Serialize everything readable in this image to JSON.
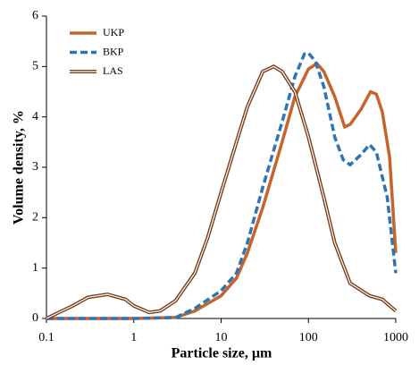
{
  "chart_data": {
    "type": "line",
    "x_label": "Particle size, µm",
    "y_label": "Volume density, %",
    "xscale": "log",
    "xlim": [
      0.1,
      1000
    ],
    "xticks": [
      0.1,
      1,
      10,
      100,
      1000
    ],
    "ylim": [
      0,
      6
    ],
    "yticks": [
      0,
      1,
      2,
      3,
      4,
      5,
      6
    ],
    "legend": "top-left",
    "series": [
      {
        "name": "UKP",
        "color": "#c5642b",
        "style": "solid",
        "x": [
          0.1,
          1,
          3,
          5,
          10,
          15,
          20,
          30,
          50,
          70,
          100,
          125,
          150,
          200,
          260,
          300,
          400,
          515,
          600,
          700,
          850,
          1000
        ],
        "values": [
          0,
          0,
          0.02,
          0.15,
          0.45,
          0.8,
          1.3,
          2.2,
          3.5,
          4.4,
          4.95,
          5.06,
          4.9,
          4.4,
          3.8,
          3.85,
          4.15,
          4.5,
          4.45,
          4.1,
          3.2,
          1.3
        ]
      },
      {
        "name": "BKP",
        "color": "#2e75b6",
        "style": "dashed",
        "x": [
          0.1,
          1,
          3,
          5,
          10,
          15,
          20,
          30,
          50,
          70,
          90,
          100,
          120,
          150,
          200,
          250,
          300,
          400,
          500,
          600,
          800,
          1000
        ],
        "values": [
          0,
          0,
          0.02,
          0.2,
          0.55,
          0.9,
          1.5,
          2.6,
          3.9,
          4.8,
          5.25,
          5.27,
          5.1,
          4.6,
          3.6,
          3.15,
          3.05,
          3.25,
          3.45,
          3.3,
          2.4,
          0.9
        ]
      },
      {
        "name": "LAS",
        "color": "#7a3e1c",
        "style": "double",
        "x": [
          0.1,
          0.2,
          0.3,
          0.5,
          0.8,
          1,
          1.5,
          2,
          3,
          5,
          7,
          10,
          15,
          20,
          30,
          40,
          50,
          70,
          100,
          150,
          200,
          300,
          500,
          700,
          1000
        ],
        "values": [
          0,
          0.25,
          0.42,
          0.48,
          0.38,
          0.25,
          0.12,
          0.15,
          0.35,
          0.9,
          1.6,
          2.5,
          3.5,
          4.2,
          4.9,
          5.0,
          4.9,
          4.5,
          3.6,
          2.4,
          1.5,
          0.7,
          0.45,
          0.38,
          0.15
        ]
      }
    ]
  }
}
